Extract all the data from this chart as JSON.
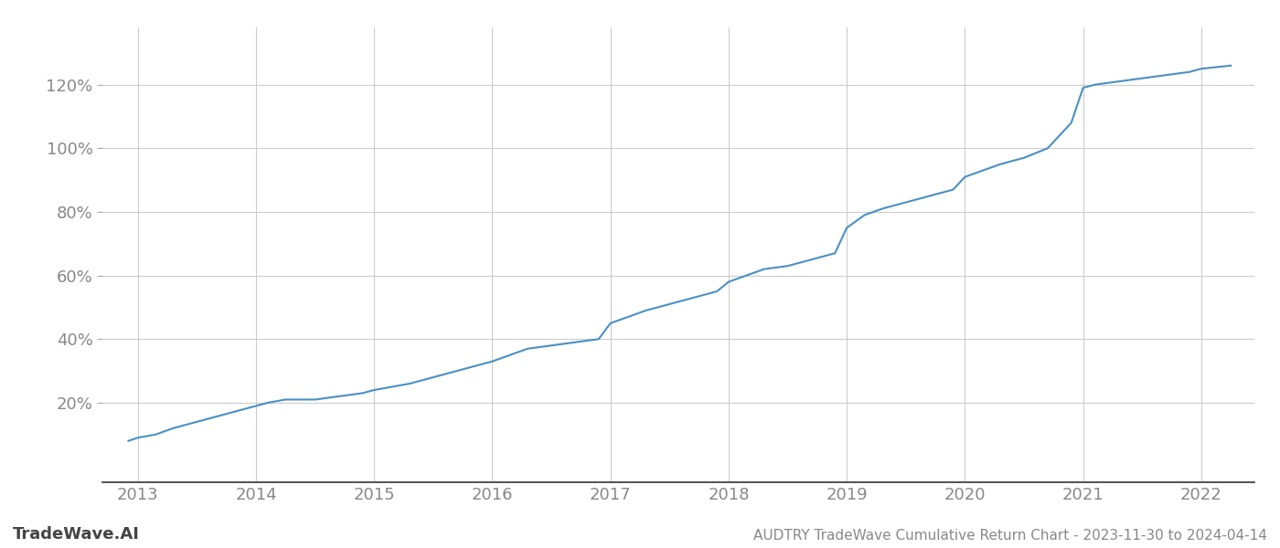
{
  "title": "AUDTRY TradeWave Cumulative Return Chart - 2023-11-30 to 2024-04-14",
  "watermark": "TradeWave.AI",
  "line_color": "#4a90c4",
  "background_color": "#ffffff",
  "grid_color": "#cccccc",
  "text_color": "#888888",
  "title_color": "#888888",
  "watermark_color": "#444444",
  "x_years": [
    2013,
    2014,
    2015,
    2016,
    2017,
    2018,
    2019,
    2020,
    2021,
    2022
  ],
  "y_ticks": [
    20,
    40,
    60,
    80,
    100,
    120
  ],
  "xlim": [
    2012.7,
    2022.45
  ],
  "ylim": [
    -5,
    138
  ],
  "x_data": [
    2012.92,
    2013.0,
    2013.15,
    2013.3,
    2013.5,
    2013.7,
    2013.9,
    2014.0,
    2014.1,
    2014.25,
    2014.5,
    2014.7,
    2014.9,
    2015.0,
    2015.15,
    2015.3,
    2015.5,
    2015.7,
    2015.9,
    2016.0,
    2016.15,
    2016.3,
    2016.5,
    2016.7,
    2016.9,
    2017.0,
    2017.15,
    2017.3,
    2017.5,
    2017.7,
    2017.9,
    2018.0,
    2018.15,
    2018.3,
    2018.5,
    2018.7,
    2018.9,
    2019.0,
    2019.15,
    2019.3,
    2019.5,
    2019.7,
    2019.9,
    2020.0,
    2020.15,
    2020.3,
    2020.5,
    2020.7,
    2020.9,
    2021.0,
    2021.1,
    2021.3,
    2021.5,
    2021.7,
    2021.9,
    2022.0,
    2022.25
  ],
  "y_data": [
    8,
    9,
    10,
    12,
    14,
    16,
    18,
    19,
    20,
    21,
    21,
    22,
    23,
    24,
    25,
    26,
    28,
    30,
    32,
    33,
    35,
    37,
    38,
    39,
    40,
    45,
    47,
    49,
    51,
    53,
    55,
    58,
    60,
    62,
    63,
    65,
    67,
    75,
    79,
    81,
    83,
    85,
    87,
    91,
    93,
    95,
    97,
    100,
    108,
    119,
    120,
    121,
    122,
    123,
    124,
    125,
    126
  ],
  "line_width": 1.5,
  "tick_fontsize": 13,
  "footer_fontsize": 11,
  "watermark_fontsize": 13
}
